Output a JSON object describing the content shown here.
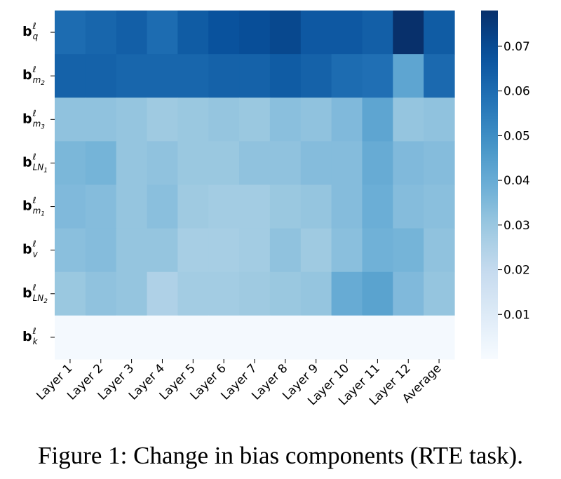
{
  "caption": "Figure 1: Change in bias components (RTE task).",
  "chart_data": {
    "type": "heatmap",
    "title": "",
    "xlabel": "",
    "ylabel": "",
    "colormap": "Blues",
    "colors": {
      "low": "#f7fbff",
      "high": "#08306b"
    },
    "x_categories": [
      "Layer 1",
      "Layer 2",
      "Layer 3",
      "Layer 4",
      "Layer 5",
      "Layer 6",
      "Layer 7",
      "Layer 8",
      "Layer 9",
      "Layer 10",
      "Layer 11",
      "Layer 12",
      "Average"
    ],
    "y_categories": [
      {
        "id": "b_q",
        "base": "b",
        "sup": "ℓ",
        "sub": "q",
        "subsub": ""
      },
      {
        "id": "b_m2",
        "base": "b",
        "sup": "ℓ",
        "sub": "m",
        "subsub": "2"
      },
      {
        "id": "b_m3",
        "base": "b",
        "sup": "ℓ",
        "sub": "m",
        "subsub": "3"
      },
      {
        "id": "b_LN1",
        "base": "b",
        "sup": "ℓ",
        "sub": "LN",
        "subsub": "1"
      },
      {
        "id": "b_m1",
        "base": "b",
        "sup": "ℓ",
        "sub": "m",
        "subsub": "1"
      },
      {
        "id": "b_v",
        "base": "b",
        "sup": "ℓ",
        "sub": "v",
        "subsub": ""
      },
      {
        "id": "b_LN2",
        "base": "b",
        "sup": "ℓ",
        "sub": "LN",
        "subsub": "2"
      },
      {
        "id": "b_k",
        "base": "b",
        "sup": "ℓ",
        "sub": "k",
        "subsub": ""
      }
    ],
    "values": [
      [
        0.06,
        0.062,
        0.064,
        0.06,
        0.065,
        0.068,
        0.069,
        0.071,
        0.066,
        0.066,
        0.064,
        0.078,
        0.065
      ],
      [
        0.063,
        0.063,
        0.062,
        0.062,
        0.062,
        0.063,
        0.063,
        0.065,
        0.063,
        0.06,
        0.059,
        0.042,
        0.061
      ],
      [
        0.032,
        0.032,
        0.031,
        0.029,
        0.03,
        0.031,
        0.03,
        0.033,
        0.032,
        0.035,
        0.042,
        0.031,
        0.032
      ],
      [
        0.036,
        0.037,
        0.031,
        0.032,
        0.03,
        0.03,
        0.032,
        0.032,
        0.034,
        0.034,
        0.04,
        0.035,
        0.034
      ],
      [
        0.035,
        0.034,
        0.031,
        0.033,
        0.029,
        0.028,
        0.028,
        0.03,
        0.031,
        0.034,
        0.039,
        0.034,
        0.033
      ],
      [
        0.033,
        0.034,
        0.031,
        0.031,
        0.027,
        0.027,
        0.028,
        0.032,
        0.029,
        0.033,
        0.038,
        0.037,
        0.032
      ],
      [
        0.03,
        0.032,
        0.031,
        0.025,
        0.028,
        0.028,
        0.029,
        0.03,
        0.031,
        0.04,
        0.043,
        0.035,
        0.031
      ],
      [
        0.001,
        0.001,
        0.001,
        0.001,
        0.001,
        0.001,
        0.001,
        0.001,
        0.001,
        0.001,
        0.001,
        0.001,
        0.001
      ]
    ],
    "vmin": 0.0,
    "vmax": 0.078,
    "colorbar": {
      "ticks": [
        0.01,
        0.02,
        0.03,
        0.04,
        0.05,
        0.06,
        0.07
      ],
      "tick_labels": [
        "0.01",
        "0.02",
        "0.03",
        "0.04",
        "0.05",
        "0.06",
        "0.07"
      ]
    },
    "grid": false
  }
}
